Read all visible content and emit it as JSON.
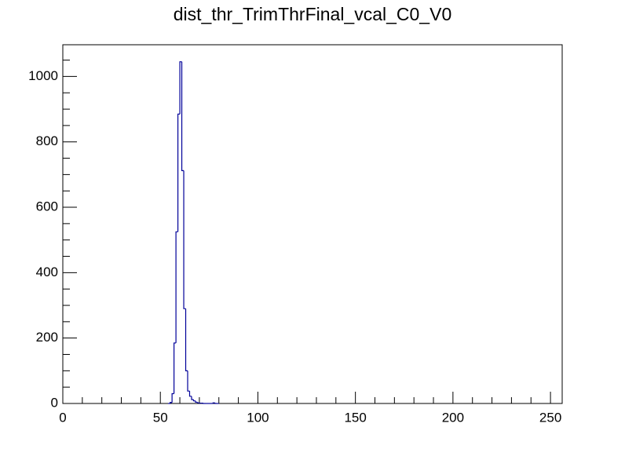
{
  "chart_data": {
    "type": "histogram",
    "title": "dist_thr_TrimThrFinal_vcal_C0_V0",
    "bins": [
      54,
      55,
      56,
      57,
      58,
      59,
      60,
      61,
      62,
      63,
      64,
      65,
      66,
      67,
      68,
      69,
      70,
      71,
      72,
      73,
      74,
      75,
      76,
      77,
      78,
      79,
      80
    ],
    "counts": [
      0,
      3,
      30,
      185,
      525,
      885,
      1045,
      712,
      290,
      100,
      38,
      22,
      12,
      8,
      4,
      2,
      1,
      1,
      0,
      0,
      0,
      0,
      0,
      2,
      0,
      0
    ],
    "color": "#000099",
    "xlim": [
      0,
      256
    ],
    "xticks": [
      0,
      50,
      100,
      150,
      200,
      250
    ],
    "xminorticks": [
      10,
      20,
      30,
      40,
      60,
      70,
      80,
      90,
      110,
      120,
      130,
      140,
      160,
      170,
      180,
      190,
      210,
      220,
      230,
      240
    ],
    "ylim": [
      0,
      1097
    ],
    "yticks": [
      0,
      200,
      400,
      600,
      800,
      1000
    ],
    "yminorticks": [
      50,
      100,
      150,
      250,
      300,
      350,
      450,
      500,
      550,
      650,
      700,
      750,
      850,
      900,
      950,
      1050
    ]
  }
}
